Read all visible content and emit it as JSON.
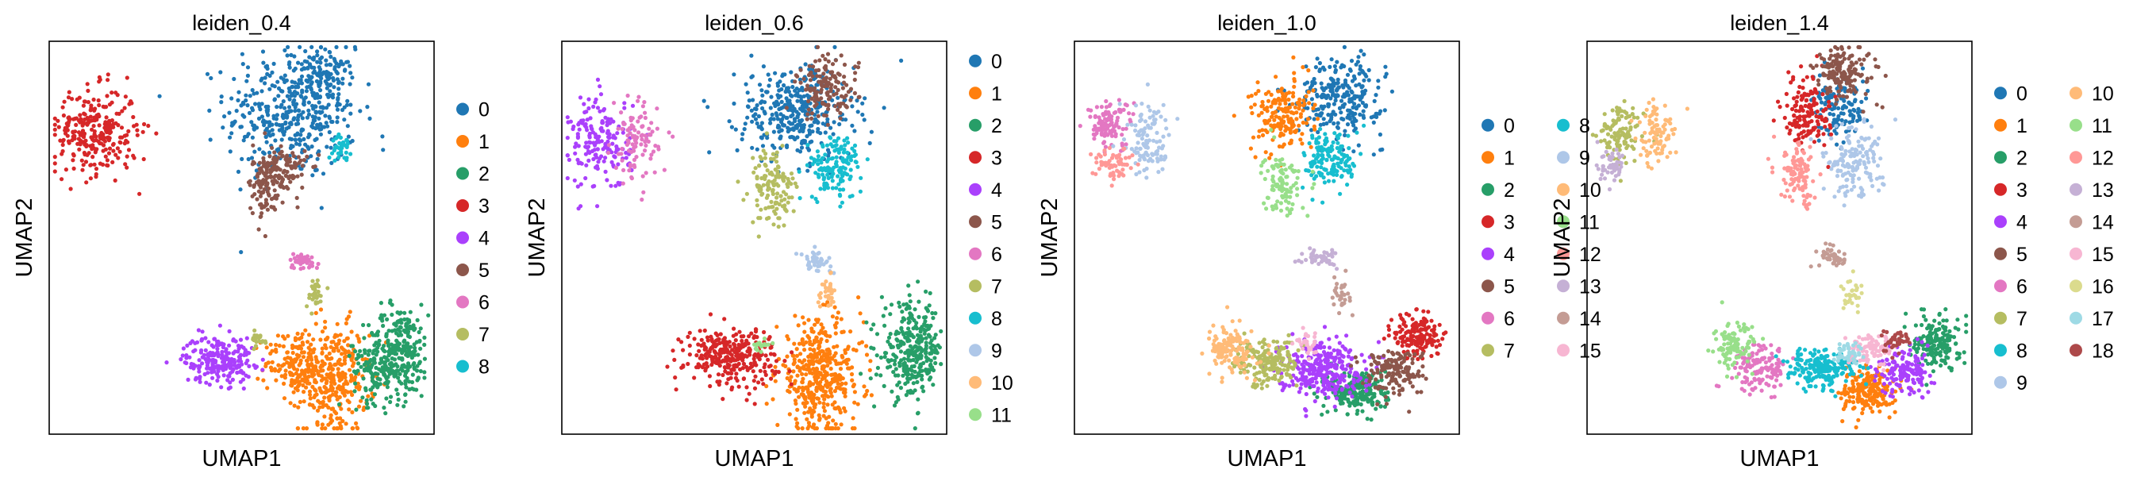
{
  "figure": {
    "xlabel": "UMAP1",
    "ylabel": "UMAP2"
  },
  "palette": [
    "#1f77b4",
    "#ff7f0e",
    "#279e68",
    "#d62728",
    "#aa40fc",
    "#8c564b",
    "#e377c2",
    "#b5bd61",
    "#17becf",
    "#aec7e8",
    "#ffbb78",
    "#98df8a",
    "#ff9896",
    "#c5b0d5",
    "#c49c94",
    "#f7b6d2",
    "#dbdb8d",
    "#9edae5",
    "#ad494a"
  ],
  "chart_data": [
    {
      "type": "scatter",
      "title": "leiden_0.4",
      "xlabel": "UMAP1",
      "ylabel": "UMAP2",
      "legend": [
        "0",
        "1",
        "2",
        "3",
        "4",
        "5",
        "6",
        "7",
        "8"
      ],
      "clusters": [
        {
          "label": "0",
          "x": 0.63,
          "y": 0.82,
          "sx": 0.085,
          "sy": 0.085,
          "n": 420
        },
        {
          "label": "0",
          "x": 0.72,
          "y": 0.9,
          "sx": 0.035,
          "sy": 0.04,
          "n": 90
        },
        {
          "label": "1",
          "x": 0.74,
          "y": 0.14,
          "sx": 0.045,
          "sy": 0.07,
          "n": 300
        },
        {
          "label": "1",
          "x": 0.64,
          "y": 0.18,
          "sx": 0.04,
          "sy": 0.04,
          "n": 160
        },
        {
          "label": "2",
          "x": 0.91,
          "y": 0.21,
          "sx": 0.04,
          "sy": 0.06,
          "n": 260
        },
        {
          "label": "2",
          "x": 0.85,
          "y": 0.16,
          "sx": 0.03,
          "sy": 0.04,
          "n": 100
        },
        {
          "label": "3",
          "x": 0.12,
          "y": 0.77,
          "sx": 0.055,
          "sy": 0.055,
          "n": 280
        },
        {
          "label": "4",
          "x": 0.44,
          "y": 0.19,
          "sx": 0.045,
          "sy": 0.03,
          "n": 220
        },
        {
          "label": "5",
          "x": 0.6,
          "y": 0.67,
          "sx": 0.035,
          "sy": 0.035,
          "n": 140
        },
        {
          "label": "5",
          "x": 0.56,
          "y": 0.62,
          "sx": 0.02,
          "sy": 0.04,
          "n": 60
        },
        {
          "label": "6",
          "x": 0.66,
          "y": 0.44,
          "sx": 0.02,
          "sy": 0.01,
          "n": 45
        },
        {
          "label": "7",
          "x": 0.69,
          "y": 0.36,
          "sx": 0.012,
          "sy": 0.02,
          "n": 30
        },
        {
          "label": "7",
          "x": 0.54,
          "y": 0.24,
          "sx": 0.015,
          "sy": 0.01,
          "n": 20
        },
        {
          "label": "8",
          "x": 0.76,
          "y": 0.73,
          "sx": 0.012,
          "sy": 0.015,
          "n": 35
        }
      ]
    },
    {
      "type": "scatter",
      "title": "leiden_0.6",
      "xlabel": "UMAP1",
      "ylabel": "UMAP2",
      "legend": [
        "0",
        "1",
        "2",
        "3",
        "4",
        "5",
        "6",
        "7",
        "8",
        "9",
        "10",
        "11"
      ],
      "clusters": [
        {
          "label": "0",
          "x": 0.61,
          "y": 0.82,
          "sx": 0.075,
          "sy": 0.06,
          "n": 360
        },
        {
          "label": "1",
          "x": 0.67,
          "y": 0.15,
          "sx": 0.055,
          "sy": 0.07,
          "n": 420
        },
        {
          "label": "2",
          "x": 0.91,
          "y": 0.21,
          "sx": 0.04,
          "sy": 0.06,
          "n": 300
        },
        {
          "label": "3",
          "x": 0.44,
          "y": 0.2,
          "sx": 0.06,
          "sy": 0.035,
          "n": 300
        },
        {
          "label": "4",
          "x": 0.1,
          "y": 0.74,
          "sx": 0.04,
          "sy": 0.06,
          "n": 180
        },
        {
          "label": "5",
          "x": 0.69,
          "y": 0.88,
          "sx": 0.04,
          "sy": 0.04,
          "n": 140
        },
        {
          "label": "6",
          "x": 0.19,
          "y": 0.74,
          "sx": 0.03,
          "sy": 0.05,
          "n": 100
        },
        {
          "label": "7",
          "x": 0.55,
          "y": 0.63,
          "sx": 0.03,
          "sy": 0.05,
          "n": 130
        },
        {
          "label": "8",
          "x": 0.71,
          "y": 0.68,
          "sx": 0.035,
          "sy": 0.04,
          "n": 140
        },
        {
          "label": "9",
          "x": 0.66,
          "y": 0.44,
          "sx": 0.02,
          "sy": 0.012,
          "n": 45
        },
        {
          "label": "10",
          "x": 0.69,
          "y": 0.36,
          "sx": 0.012,
          "sy": 0.02,
          "n": 30
        },
        {
          "label": "11",
          "x": 0.52,
          "y": 0.23,
          "sx": 0.012,
          "sy": 0.008,
          "n": 15
        }
      ]
    },
    {
      "type": "scatter",
      "title": "leiden_1.0",
      "xlabel": "UMAP1",
      "ylabel": "UMAP2",
      "legend": [
        "0",
        "1",
        "2",
        "3",
        "4",
        "5",
        "6",
        "7",
        "8",
        "9",
        "10",
        "11",
        "12",
        "13",
        "14",
        "15"
      ],
      "clusters": [
        {
          "label": "0",
          "x": 0.69,
          "y": 0.86,
          "sx": 0.055,
          "sy": 0.05,
          "n": 260
        },
        {
          "label": "1",
          "x": 0.54,
          "y": 0.81,
          "sx": 0.04,
          "sy": 0.045,
          "n": 180
        },
        {
          "label": "2",
          "x": 0.74,
          "y": 0.11,
          "sx": 0.04,
          "sy": 0.03,
          "n": 220
        },
        {
          "label": "3",
          "x": 0.89,
          "y": 0.25,
          "sx": 0.03,
          "sy": 0.03,
          "n": 160
        },
        {
          "label": "4",
          "x": 0.64,
          "y": 0.17,
          "sx": 0.055,
          "sy": 0.035,
          "n": 300
        },
        {
          "label": "5",
          "x": 0.83,
          "y": 0.16,
          "sx": 0.04,
          "sy": 0.03,
          "n": 150
        },
        {
          "label": "6",
          "x": 0.09,
          "y": 0.79,
          "sx": 0.03,
          "sy": 0.03,
          "n": 110
        },
        {
          "label": "7",
          "x": 0.5,
          "y": 0.18,
          "sx": 0.04,
          "sy": 0.03,
          "n": 180
        },
        {
          "label": "8",
          "x": 0.67,
          "y": 0.7,
          "sx": 0.035,
          "sy": 0.04,
          "n": 140
        },
        {
          "label": "9",
          "x": 0.19,
          "y": 0.75,
          "sx": 0.03,
          "sy": 0.05,
          "n": 110
        },
        {
          "label": "10",
          "x": 0.41,
          "y": 0.21,
          "sx": 0.03,
          "sy": 0.03,
          "n": 140
        },
        {
          "label": "11",
          "x": 0.54,
          "y": 0.64,
          "sx": 0.025,
          "sy": 0.04,
          "n": 100
        },
        {
          "label": "12",
          "x": 0.1,
          "y": 0.69,
          "sx": 0.025,
          "sy": 0.02,
          "n": 60
        },
        {
          "label": "13",
          "x": 0.64,
          "y": 0.45,
          "sx": 0.025,
          "sy": 0.012,
          "n": 45
        },
        {
          "label": "14",
          "x": 0.69,
          "y": 0.36,
          "sx": 0.012,
          "sy": 0.02,
          "n": 30
        },
        {
          "label": "15",
          "x": 0.6,
          "y": 0.23,
          "sx": 0.02,
          "sy": 0.015,
          "n": 30
        }
      ]
    },
    {
      "type": "scatter",
      "title": "leiden_1.4",
      "xlabel": "UMAP1",
      "ylabel": "UMAP2",
      "legend": [
        "0",
        "1",
        "2",
        "3",
        "4",
        "5",
        "6",
        "7",
        "8",
        "9",
        "10",
        "11",
        "12",
        "13",
        "14",
        "15",
        "16",
        "17",
        "18"
      ],
      "clusters": [
        {
          "label": "0",
          "x": 0.66,
          "y": 0.82,
          "sx": 0.035,
          "sy": 0.04,
          "n": 130
        },
        {
          "label": "1",
          "x": 0.73,
          "y": 0.11,
          "sx": 0.035,
          "sy": 0.03,
          "n": 200
        },
        {
          "label": "2",
          "x": 0.91,
          "y": 0.24,
          "sx": 0.03,
          "sy": 0.035,
          "n": 170
        },
        {
          "label": "3",
          "x": 0.57,
          "y": 0.82,
          "sx": 0.03,
          "sy": 0.045,
          "n": 150
        },
        {
          "label": "4",
          "x": 0.83,
          "y": 0.16,
          "sx": 0.035,
          "sy": 0.03,
          "n": 150
        },
        {
          "label": "5",
          "x": 0.67,
          "y": 0.92,
          "sx": 0.04,
          "sy": 0.035,
          "n": 150
        },
        {
          "label": "6",
          "x": 0.45,
          "y": 0.17,
          "sx": 0.035,
          "sy": 0.03,
          "n": 140
        },
        {
          "label": "7",
          "x": 0.09,
          "y": 0.76,
          "sx": 0.03,
          "sy": 0.04,
          "n": 110
        },
        {
          "label": "8",
          "x": 0.61,
          "y": 0.17,
          "sx": 0.045,
          "sy": 0.025,
          "n": 200
        },
        {
          "label": "9",
          "x": 0.69,
          "y": 0.69,
          "sx": 0.04,
          "sy": 0.045,
          "n": 150
        },
        {
          "label": "10",
          "x": 0.18,
          "y": 0.76,
          "sx": 0.025,
          "sy": 0.04,
          "n": 90
        },
        {
          "label": "11",
          "x": 0.38,
          "y": 0.22,
          "sx": 0.025,
          "sy": 0.03,
          "n": 100
        },
        {
          "label": "12",
          "x": 0.55,
          "y": 0.66,
          "sx": 0.025,
          "sy": 0.04,
          "n": 100
        },
        {
          "label": "13",
          "x": 0.07,
          "y": 0.68,
          "sx": 0.02,
          "sy": 0.02,
          "n": 50
        },
        {
          "label": "14",
          "x": 0.64,
          "y": 0.45,
          "sx": 0.02,
          "sy": 0.012,
          "n": 45
        },
        {
          "label": "15",
          "x": 0.74,
          "y": 0.21,
          "sx": 0.03,
          "sy": 0.02,
          "n": 90
        },
        {
          "label": "16",
          "x": 0.69,
          "y": 0.36,
          "sx": 0.012,
          "sy": 0.02,
          "n": 30
        },
        {
          "label": "17",
          "x": 0.68,
          "y": 0.21,
          "sx": 0.02,
          "sy": 0.015,
          "n": 40
        },
        {
          "label": "18",
          "x": 0.8,
          "y": 0.24,
          "sx": 0.02,
          "sy": 0.015,
          "n": 40
        }
      ]
    }
  ]
}
